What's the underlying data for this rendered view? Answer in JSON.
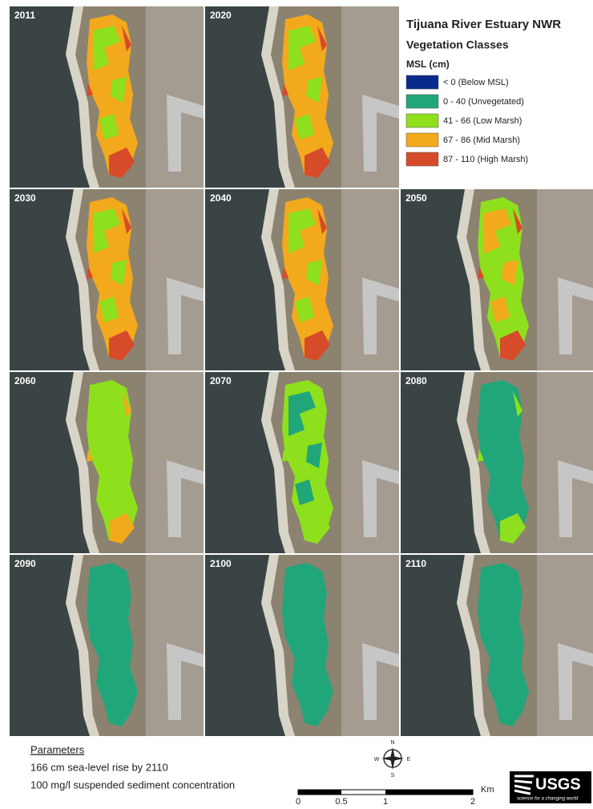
{
  "legend": {
    "title": "Tijuana River Estuary NWR",
    "subtitle": "Vegetation Classes",
    "unit": "MSL (cm)",
    "classes": [
      {
        "label": "< 0 (Below MSL)",
        "color": "#0b2b8c"
      },
      {
        "label": "0 - 40 (Unvegetated)",
        "color": "#21a67a"
      },
      {
        "label": "41 - 66 (Low Marsh)",
        "color": "#8ee01c"
      },
      {
        "label": "67 - 86 (Mid Marsh)",
        "color": "#f2a91b"
      },
      {
        "label": "87 - 110 (High Marsh)",
        "color": "#d64b2a"
      }
    ]
  },
  "panels": [
    {
      "year": "2011",
      "fills": [
        "#f2a91b",
        "#8ee01c",
        "#d64b2a"
      ]
    },
    {
      "year": "2020",
      "fills": [
        "#f2a91b",
        "#8ee01c",
        "#d64b2a"
      ]
    },
    {
      "year": "2030",
      "fills": [
        "#f2a91b",
        "#8ee01c",
        "#d64b2a"
      ]
    },
    {
      "year": "2040",
      "fills": [
        "#f2a91b",
        "#8ee01c",
        "#d64b2a"
      ]
    },
    {
      "year": "2050",
      "fills": [
        "#8ee01c",
        "#f2a91b",
        "#d64b2a"
      ]
    },
    {
      "year": "2060",
      "fills": [
        "#8ee01c",
        "#8ee01c",
        "#f2a91b"
      ]
    },
    {
      "year": "2070",
      "fills": [
        "#8ee01c",
        "#21a67a",
        "#8ee01c"
      ]
    },
    {
      "year": "2080",
      "fills": [
        "#21a67a",
        "#21a67a",
        "#8ee01c"
      ]
    },
    {
      "year": "2090",
      "fills": [
        "#21a67a"
      ]
    },
    {
      "year": "2100",
      "fills": [
        "#21a67a"
      ]
    },
    {
      "year": "2110",
      "fills": [
        "#21a67a"
      ]
    }
  ],
  "parameters": {
    "title": "Parameters",
    "lines": [
      "166 cm sea-level rise by 2110",
      "100 mg/l suspended sediment concentration"
    ]
  },
  "compass": {
    "n": "N",
    "e": "E",
    "s": "S",
    "w": "W"
  },
  "scale_bar": {
    "ticks": [
      "0",
      "0.5",
      "1",
      "2"
    ],
    "unit": "Km"
  },
  "logo": {
    "name": "USGS",
    "tagline": "science for a changing world"
  }
}
